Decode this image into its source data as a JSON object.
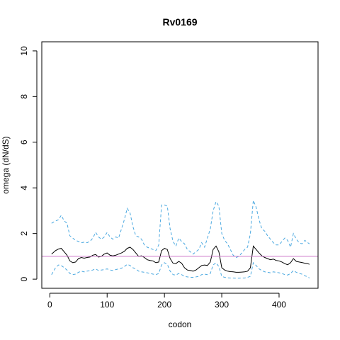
{
  "chart_data": {
    "type": "line",
    "title": "Rv0169",
    "xlabel": "codon",
    "ylabel": "omega (dN/dS)",
    "xlim": [
      -14,
      468
    ],
    "ylim": [
      -0.4,
      10.4
    ],
    "x_ticks": [
      0,
      100,
      200,
      300,
      400
    ],
    "x_tick_labels": [
      "0",
      "100",
      "200",
      "300",
      "400"
    ],
    "y_ticks": [
      0,
      2,
      4,
      6,
      8,
      10
    ],
    "y_tick_labels": [
      "0",
      "2",
      "4",
      "6",
      "8",
      "10"
    ],
    "reference_line": {
      "y": 1,
      "color": "#cc79c9"
    },
    "grid": false,
    "series": [
      {
        "role": "estimate",
        "style": "solid",
        "color": "#000000",
        "x": [
          3,
          10,
          15,
          20,
          25,
          30,
          35,
          40,
          45,
          50,
          55,
          60,
          65,
          70,
          75,
          80,
          85,
          90,
          95,
          100,
          105,
          110,
          115,
          120,
          125,
          130,
          135,
          140,
          145,
          150,
          155,
          160,
          165,
          170,
          175,
          180,
          185,
          190,
          195,
          200,
          205,
          210,
          215,
          220,
          225,
          230,
          235,
          240,
          245,
          250,
          255,
          260,
          265,
          270,
          275,
          280,
          285,
          290,
          295,
          300,
          305,
          310,
          315,
          320,
          325,
          330,
          335,
          340,
          345,
          350,
          355,
          360,
          365,
          370,
          375,
          380,
          385,
          390,
          395,
          400,
          405,
          410,
          415,
          420,
          425,
          430,
          435,
          440,
          445,
          450,
          453
        ],
        "y": [
          1.1,
          1.25,
          1.32,
          1.35,
          1.2,
          1.05,
          0.8,
          0.72,
          0.75,
          0.9,
          0.95,
          0.92,
          0.95,
          0.97,
          1.05,
          1.08,
          0.97,
          1.0,
          1.1,
          1.15,
          1.05,
          1.02,
          1.05,
          1.1,
          1.15,
          1.22,
          1.35,
          1.4,
          1.3,
          1.15,
          1.0,
          1.02,
          0.95,
          0.85,
          0.82,
          0.8,
          0.72,
          0.75,
          1.25,
          1.35,
          1.3,
          0.9,
          0.7,
          0.68,
          0.78,
          0.7,
          0.5,
          0.4,
          0.38,
          0.35,
          0.4,
          0.5,
          0.6,
          0.62,
          0.6,
          0.75,
          1.3,
          1.45,
          1.2,
          0.5,
          0.4,
          0.35,
          0.33,
          0.32,
          0.3,
          0.3,
          0.31,
          0.32,
          0.35,
          0.5,
          1.45,
          1.3,
          1.15,
          1.02,
          0.95,
          0.9,
          0.85,
          0.88,
          0.82,
          0.8,
          0.75,
          0.68,
          0.63,
          0.72,
          0.9,
          0.78,
          0.75,
          0.73,
          0.7,
          0.68,
          0.65
        ]
      },
      {
        "role": "upper",
        "style": "dashed",
        "color": "#4aa8e0",
        "x": [
          3,
          10,
          15,
          20,
          25,
          30,
          35,
          40,
          45,
          50,
          55,
          60,
          65,
          70,
          75,
          80,
          85,
          90,
          95,
          100,
          105,
          110,
          115,
          120,
          125,
          130,
          135,
          140,
          145,
          150,
          155,
          160,
          165,
          170,
          175,
          180,
          185,
          190,
          195,
          200,
          205,
          210,
          215,
          220,
          225,
          230,
          235,
          240,
          245,
          250,
          255,
          260,
          265,
          270,
          275,
          280,
          285,
          290,
          295,
          300,
          305,
          310,
          315,
          320,
          325,
          330,
          335,
          340,
          345,
          350,
          355,
          360,
          365,
          370,
          375,
          380,
          385,
          390,
          395,
          400,
          405,
          410,
          415,
          420,
          425,
          430,
          435,
          440,
          445,
          450,
          453
        ],
        "y": [
          2.45,
          2.55,
          2.6,
          2.8,
          2.55,
          2.45,
          1.9,
          1.8,
          1.7,
          1.65,
          1.6,
          1.62,
          1.6,
          1.65,
          1.8,
          2.05,
          1.85,
          1.75,
          1.85,
          2.05,
          1.85,
          1.75,
          1.85,
          1.8,
          2.2,
          2.6,
          3.1,
          2.9,
          2.3,
          1.9,
          1.85,
          1.75,
          1.5,
          1.4,
          1.35,
          1.3,
          1.25,
          1.5,
          3.25,
          3.25,
          3.2,
          2.2,
          1.65,
          1.45,
          1.8,
          1.65,
          1.55,
          1.3,
          1.2,
          1.1,
          1.2,
          1.3,
          1.6,
          1.4,
          1.8,
          2.2,
          3.0,
          3.4,
          3.2,
          2.0,
          1.7,
          1.55,
          1.3,
          1.05,
          0.95,
          1.0,
          1.15,
          1.3,
          1.4,
          2.0,
          3.45,
          3.15,
          2.6,
          2.2,
          2.1,
          1.9,
          1.75,
          1.6,
          1.5,
          1.5,
          1.65,
          1.8,
          1.7,
          1.4,
          2.0,
          1.75,
          1.6,
          1.55,
          1.7,
          1.6,
          1.55
        ]
      },
      {
        "role": "lower",
        "style": "dashed",
        "color": "#4aa8e0",
        "x": [
          3,
          10,
          15,
          20,
          25,
          30,
          35,
          40,
          45,
          50,
          55,
          60,
          65,
          70,
          75,
          80,
          85,
          90,
          95,
          100,
          105,
          110,
          115,
          120,
          125,
          130,
          135,
          140,
          145,
          150,
          155,
          160,
          165,
          170,
          175,
          180,
          185,
          190,
          195,
          200,
          205,
          210,
          215,
          220,
          225,
          230,
          235,
          240,
          245,
          250,
          255,
          260,
          265,
          270,
          275,
          280,
          285,
          290,
          295,
          300,
          305,
          310,
          315,
          320,
          325,
          330,
          335,
          340,
          345,
          350,
          355,
          360,
          365,
          370,
          375,
          380,
          385,
          390,
          395,
          400,
          405,
          410,
          415,
          420,
          425,
          430,
          435,
          440,
          445,
          450,
          453
        ],
        "y": [
          0.2,
          0.5,
          0.62,
          0.6,
          0.5,
          0.4,
          0.25,
          0.2,
          0.22,
          0.3,
          0.35,
          0.32,
          0.35,
          0.37,
          0.4,
          0.45,
          0.38,
          0.4,
          0.42,
          0.45,
          0.4,
          0.38,
          0.42,
          0.45,
          0.48,
          0.55,
          0.65,
          0.6,
          0.5,
          0.45,
          0.35,
          0.32,
          0.3,
          0.28,
          0.25,
          0.22,
          0.2,
          0.25,
          0.62,
          0.72,
          0.65,
          0.35,
          0.2,
          0.18,
          0.25,
          0.2,
          0.12,
          0.1,
          0.08,
          0.08,
          0.1,
          0.12,
          0.2,
          0.22,
          0.2,
          0.25,
          0.62,
          0.72,
          0.55,
          0.12,
          0.08,
          0.06,
          0.05,
          0.05,
          0.04,
          0.04,
          0.05,
          0.05,
          0.08,
          0.12,
          0.72,
          0.6,
          0.45,
          0.38,
          0.32,
          0.3,
          0.28,
          0.32,
          0.3,
          0.28,
          0.25,
          0.2,
          0.18,
          0.25,
          0.38,
          0.3,
          0.25,
          0.22,
          0.15,
          0.1,
          0.05
        ]
      }
    ]
  }
}
